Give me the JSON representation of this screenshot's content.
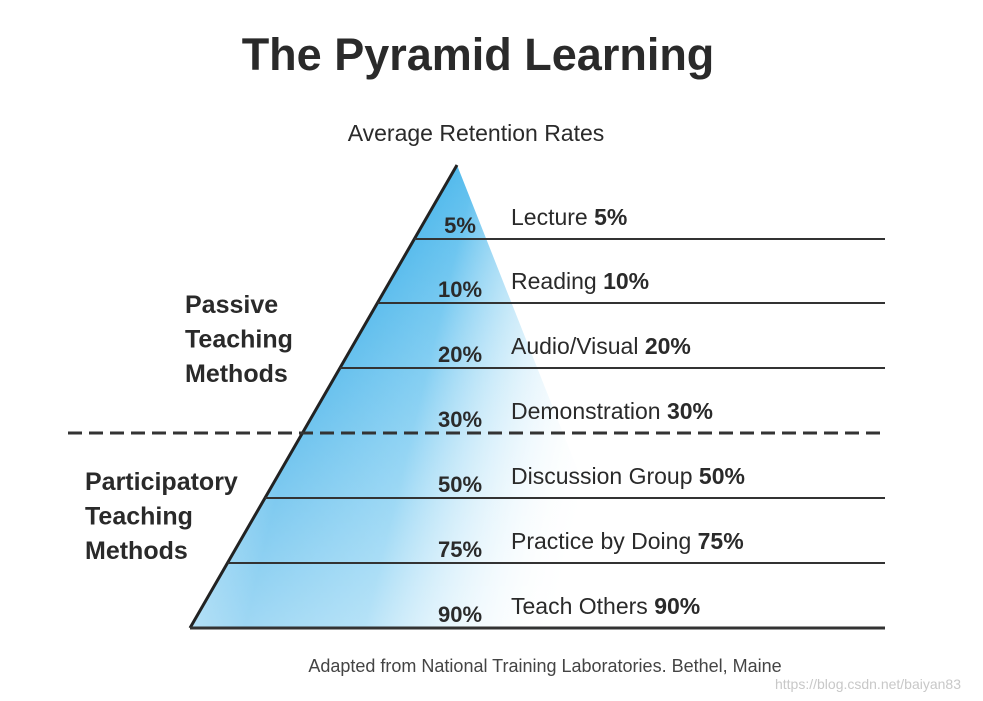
{
  "title": "The Pyramid Learning",
  "subtitle": "Average Retention Rates",
  "levels": [
    {
      "pyramid_label": "5%",
      "method": "Lecture",
      "rate": "5%"
    },
    {
      "pyramid_label": "10%",
      "method": "Reading",
      "rate": "10%"
    },
    {
      "pyramid_label": "20%",
      "method": "Audio/Visual",
      "rate": "20%"
    },
    {
      "pyramid_label": "30%",
      "method": "Demonstration",
      "rate": "30%"
    },
    {
      "pyramid_label": "50%",
      "method": "Discussion Group",
      "rate": "50%"
    },
    {
      "pyramid_label": "75%",
      "method": "Practice by Doing",
      "rate": "75%"
    },
    {
      "pyramid_label": "90%",
      "method": "Teach Others",
      "rate": "90%"
    }
  ],
  "groups": [
    {
      "lines": [
        "Passive",
        "Teaching",
        "Methods"
      ]
    },
    {
      "lines": [
        "Participatory",
        "Teaching",
        "Methods"
      ]
    }
  ],
  "footer": "Adapted from National Training Laboratories. Bethel, Maine",
  "watermark": "https://blog.csdn.net/baiyan83"
}
